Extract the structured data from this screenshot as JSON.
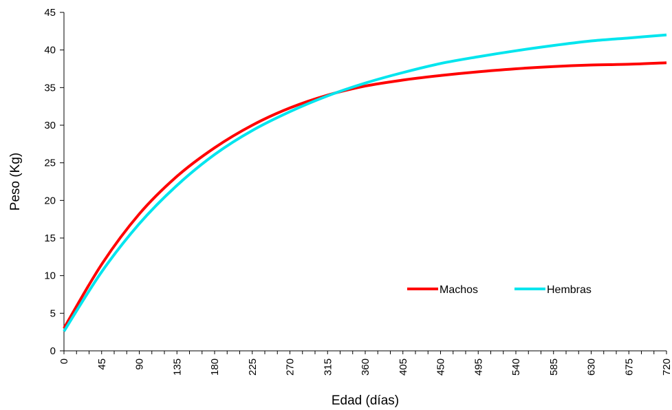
{
  "chart_data": {
    "type": "line",
    "title": "",
    "xlabel": "Edad (días)",
    "ylabel": "Peso (Kg)",
    "xlim": [
      0,
      720
    ],
    "ylim": [
      0,
      45
    ],
    "x_ticks": [
      0,
      45,
      90,
      135,
      180,
      225,
      270,
      315,
      360,
      405,
      450,
      495,
      540,
      585,
      630,
      675,
      720
    ],
    "y_ticks": [
      0,
      5,
      10,
      15,
      20,
      25,
      30,
      35,
      40,
      45
    ],
    "grid": false,
    "legend_position": "bottom-right",
    "x": [
      0,
      45,
      90,
      135,
      180,
      225,
      270,
      315,
      360,
      405,
      450,
      495,
      540,
      585,
      630,
      675,
      720
    ],
    "series": [
      {
        "name": "Machos",
        "color": "#ff0000",
        "values": [
          3.0,
          11.5,
          18.2,
          23.2,
          27.0,
          30.0,
          32.3,
          34.0,
          35.2,
          36.0,
          36.6,
          37.1,
          37.5,
          37.8,
          38.0,
          38.1,
          38.3
        ]
      },
      {
        "name": "Hembras",
        "color": "#00e5ee",
        "values": [
          2.6,
          10.5,
          16.9,
          22.0,
          26.1,
          29.3,
          31.8,
          33.9,
          35.6,
          37.0,
          38.2,
          39.1,
          39.9,
          40.6,
          41.2,
          41.6,
          42.0
        ]
      }
    ]
  }
}
